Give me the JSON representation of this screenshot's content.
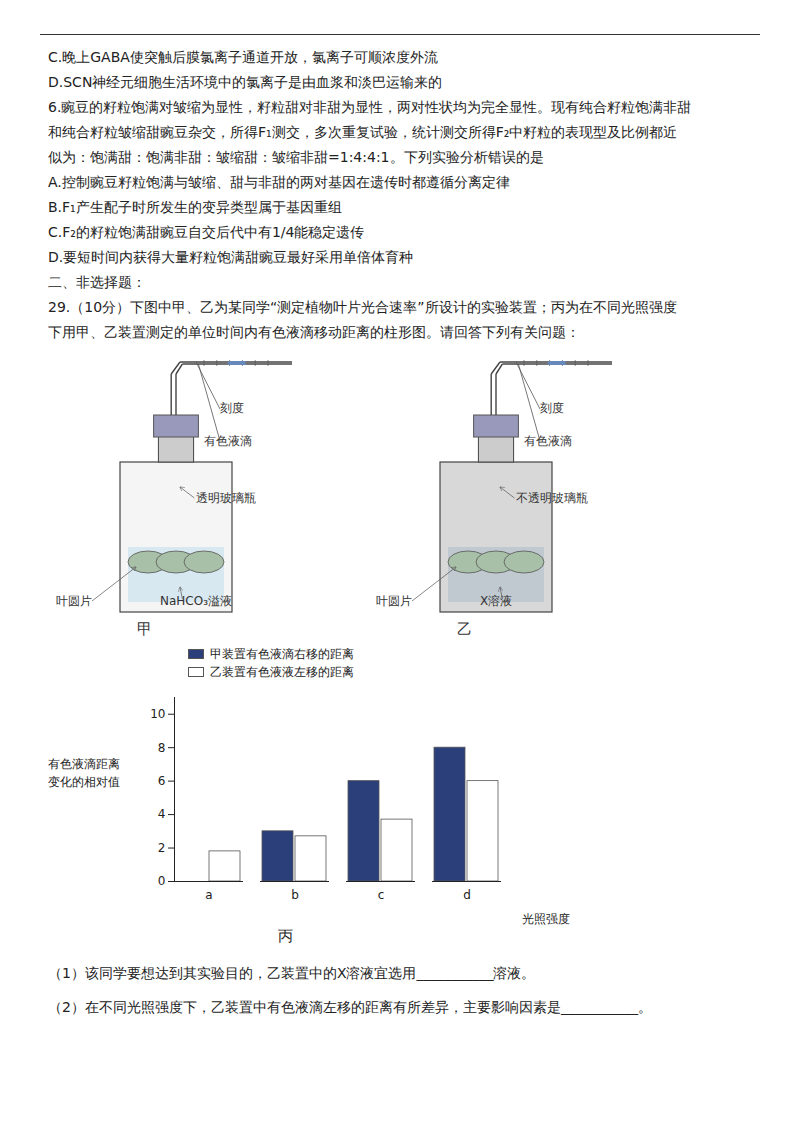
{
  "chart_data": {
    "type": "bar",
    "title": "丙",
    "xlabel": "光照强度",
    "ylabel": [
      "有色液滴距离",
      "变化的相对值"
    ],
    "categories": [
      "a",
      "b",
      "c",
      "d"
    ],
    "series": [
      {
        "name": "甲装置有色液滴右移的距离",
        "color": "#2b3f7a",
        "values": [
          0,
          3,
          6,
          8
        ]
      },
      {
        "name": "乙装置有色液液左移的距离",
        "color": "#ffffff",
        "values": [
          1.8,
          2.7,
          3.7,
          6
        ]
      }
    ],
    "ylim": [
      0,
      11
    ],
    "yticks": [
      0,
      2,
      4,
      6,
      8,
      10
    ],
    "legend": "upper left",
    "annotations": {
      "text": [
        "C.晚上GABA使突触后膜氯离子通道开放，氯离子可顺浓度外流",
        "D.SCN神经元细胞生活环境中的氯离子是由血浆和淡巴运输来的",
        "6.豌豆的籽粒饱满对皱缩为显性，籽粒甜对非甜为显性，两对性状均为完全显性。现有纯合籽粒饱满非甜",
        "和纯合籽粒皱缩甜豌豆杂交，所得F₁测交，多次重复试验，统计测交所得F₂中籽粒的表现型及比例都近",
        "似为：饱满甜：饱满非甜：皱缩甜：皱缩非甜=1:4:4:1。下列实验分析错误的是",
        "A.控制豌豆籽粒饱满与皱缩、甜与非甜的两对基因在遗传时都遵循分离定律",
        "B.F₁产生配子时所发生的变异类型属于基因重组",
        "C.F₂的籽粒饱满甜豌豆自交后代中有1/4能稳定遗传",
        "D.要短时间内获得大量籽粒饱满甜豌豆最好采用单倍体育种",
        "二、非选择题：",
        "29.（10分）下图中甲、乙为某同学“测定植物叶片光合速率”所设计的实验装置；丙为在不同光照强度",
        "下用甲、乙装置测定的单位时间内有色液滴移动距离的柱形图。请回答下列有关问题："
      ],
      "apparatus": [
        {
          "name": "甲",
          "labels": [
            "刻度",
            "有色液滴",
            "透明玻璃瓶",
            "叶圆片",
            "NaHCO₃溢液"
          ]
        },
        {
          "name": "乙",
          "labels": [
            "刻度",
            "有色液滴",
            "不透明玻璃瓶",
            "叶圆片",
            "X溶液"
          ]
        }
      ],
      "questions": [
        "（1）该同学要想达到其实验目的，乙装置中的X溶液宜选用___________溶液。",
        "（2）在不同光照强度下，乙装置中有色液滴左移的距离有所差异，主要影响因素是___________。"
      ]
    }
  }
}
